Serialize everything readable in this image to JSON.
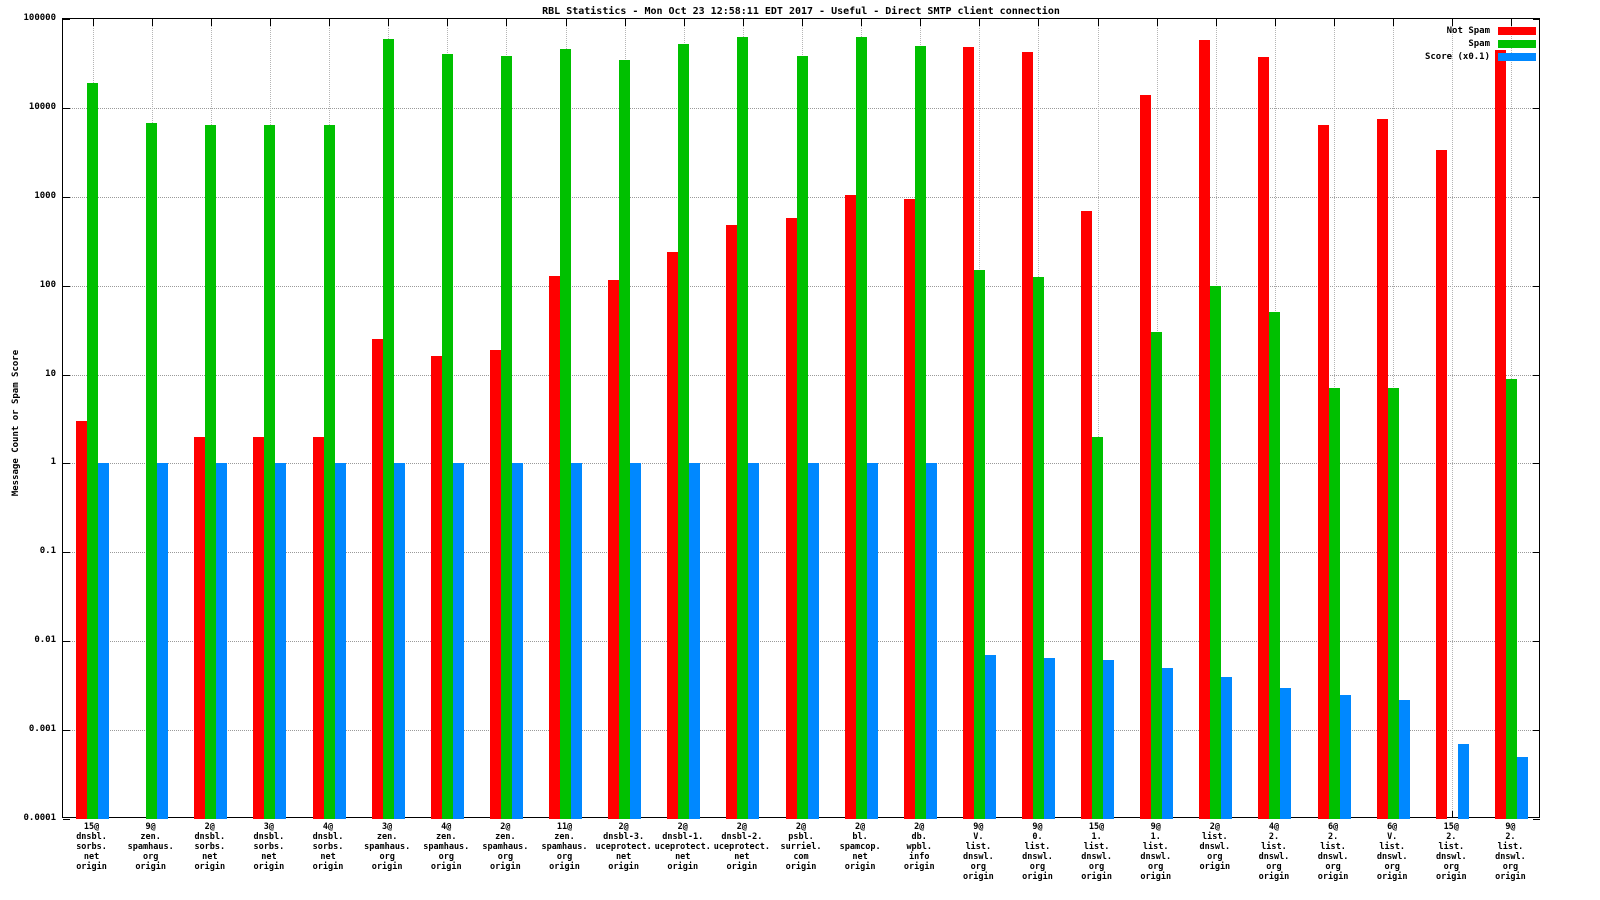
{
  "title": "RBL Statistics - Mon Oct 23 12:58:11 EDT 2017 - Useful - Direct SMTP client connection",
  "ylabel": "Message Count or Spam Score",
  "legend": [
    {
      "label": "Not Spam",
      "color": "#ff0000"
    },
    {
      "label": "Spam",
      "color": "#00c000"
    },
    {
      "label": "Score (x0.1)",
      "color": "#0088ff"
    }
  ],
  "chart_data": {
    "type": "bar",
    "yscale": "log",
    "ylim": [
      0.0001,
      100000
    ],
    "yticks": [
      "100000",
      "10000",
      "1000",
      "100",
      "10",
      "1",
      "0.1",
      "0.01",
      "0.001",
      "0.0001"
    ],
    "grid": true,
    "legend_position": "top-right",
    "categories": [
      "15@\ndnsbl.\nsorbs.\nnet\norigin",
      "9@\nzen.\nspamhaus.\norg\norigin",
      "2@\ndnsbl.\nsorbs.\nnet\norigin",
      "3@\ndnsbl.\nsorbs.\nnet\norigin",
      "4@\ndnsbl.\nsorbs.\nnet\norigin",
      "3@\nzen.\nspamhaus.\norg\norigin",
      "4@\nzen.\nspamhaus.\norg\norigin",
      "2@\nzen.\nspamhaus.\norg\norigin",
      "11@\nzen.\nspamhaus.\norg\norigin",
      "2@\ndnsbl-3.\nuceprotect.\nnet\norigin",
      "2@\ndnsbl-1.\nuceprotect.\nnet\norigin",
      "2@\ndnsbl-2.\nuceprotect.\nnet\norigin",
      "2@\npsbl.\nsurriel.\ncom\norigin",
      "2@\nbl.\nspamcop.\nnet\norigin",
      "2@\ndb.\nwpbl.\ninfo\norigin",
      "9@\nV.\nlist.\ndnswl.\norg\norigin",
      "9@\n0.\nlist.\ndnswl.\norg\norigin",
      "15@\n1.\nlist.\ndnswl.\norg\norigin",
      "9@\n1.\nlist.\ndnswl.\norg\norigin",
      "2@\nlist.\ndnswl.\norg\norigin",
      "4@\n2.\nlist.\ndnswl.\norg\norigin",
      "6@\n2.\nlist.\ndnswl.\norg\norigin",
      "6@\nV.\nlist.\ndnswl.\norg\norigin",
      "15@\n2.\nlist.\ndnswl.\norg\norigin",
      "9@\n2.\nlist.\ndnswl.\norg\norigin"
    ],
    "series": [
      {
        "name": "Not Spam",
        "color": "#ff0000",
        "values": [
          3,
          0,
          2,
          2,
          2,
          25,
          16,
          19,
          130,
          115,
          240,
          480,
          570,
          1050,
          950,
          48000,
          42000,
          700,
          14000,
          58000,
          37000,
          6500,
          7500,
          3400,
          45000
        ]
      },
      {
        "name": "Spam",
        "color": "#00c000",
        "values": [
          19000,
          6800,
          6500,
          6500,
          6500,
          60000,
          40000,
          38000,
          46000,
          35000,
          52000,
          62000,
          38000,
          62000,
          50000,
          150,
          125,
          2,
          30,
          100,
          50,
          7,
          7,
          0,
          9
        ]
      },
      {
        "name": "Score (x0.1)",
        "color": "#0088ff",
        "values": [
          1,
          1,
          1,
          1,
          1,
          1,
          1,
          1,
          1,
          1,
          1,
          1,
          1,
          1,
          1,
          0.007,
          0.0065,
          0.0062,
          0.005,
          0.004,
          0.003,
          0.0025,
          0.0022,
          0.0007,
          0.0005
        ]
      }
    ]
  }
}
